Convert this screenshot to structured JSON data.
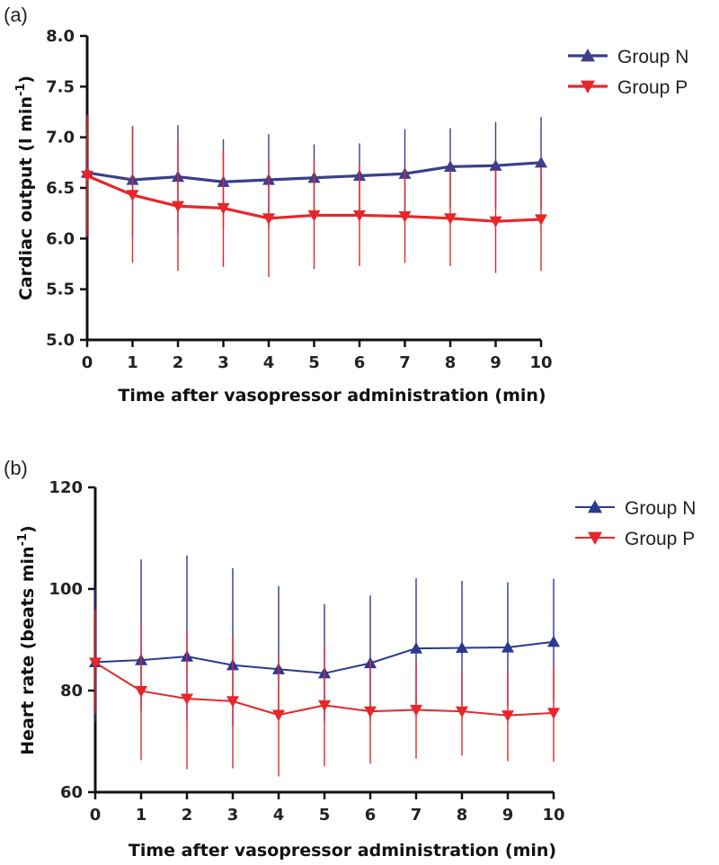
{
  "chart_data": [
    {
      "panel_label": "(a)",
      "type": "line",
      "ylabel_main": "Cardiac output (l min",
      "ylabel_sup": "-1",
      "ylabel_end": ")",
      "xlabel": "Time after vasopressor administration (min)",
      "ylim": [
        5.0,
        8.0
      ],
      "xlim": [
        0,
        10
      ],
      "yticks": [
        "5.0",
        "5.5",
        "6.0",
        "6.5",
        "7.0",
        "7.5",
        "8.0"
      ],
      "xticks": [
        "0",
        "1",
        "2",
        "3",
        "4",
        "5",
        "6",
        "7",
        "8",
        "9",
        "10"
      ],
      "grid": false,
      "legend_position": "top-right",
      "series": [
        {
          "name": "Group N",
          "color": "#3b3f8c",
          "marker": "triangle-up",
          "x": [
            0,
            1,
            2,
            3,
            4,
            5,
            6,
            7,
            8,
            9,
            10
          ],
          "values": [
            6.65,
            6.58,
            6.61,
            6.56,
            6.58,
            6.6,
            6.62,
            6.64,
            6.71,
            6.72,
            6.75
          ],
          "err_upper": [
            7.22,
            7.11,
            7.12,
            6.98,
            7.03,
            6.93,
            6.94,
            7.08,
            7.09,
            7.15,
            7.2
          ],
          "err_lower": [
            6.1,
            6.0,
            6.05,
            6.1,
            6.1,
            6.2,
            6.25,
            6.2,
            6.3,
            6.3,
            6.3
          ]
        },
        {
          "name": "Group P",
          "color": "#e8262a",
          "marker": "triangle-down",
          "x": [
            0,
            1,
            2,
            3,
            4,
            5,
            6,
            7,
            8,
            9,
            10
          ],
          "values": [
            6.62,
            6.43,
            6.32,
            6.3,
            6.2,
            6.23,
            6.23,
            6.22,
            6.2,
            6.17,
            6.19
          ],
          "err_upper": [
            7.22,
            7.11,
            6.96,
            6.88,
            6.78,
            6.77,
            6.73,
            6.68,
            6.67,
            6.68,
            6.7
          ],
          "err_lower": [
            6.02,
            5.76,
            5.68,
            5.72,
            5.62,
            5.7,
            5.73,
            5.76,
            5.73,
            5.66,
            5.68
          ]
        }
      ]
    },
    {
      "panel_label": "(b)",
      "type": "line",
      "ylabel_main": "Heart rate (beats min",
      "ylabel_sup": "-1",
      "ylabel_end": ")",
      "xlabel": "Time after vasopressor administration (min)",
      "ylim": [
        60,
        120
      ],
      "xlim": [
        0,
        10
      ],
      "yticks": [
        "60",
        "80",
        "100",
        "120"
      ],
      "xticks": [
        "0",
        "1",
        "2",
        "3",
        "4",
        "5",
        "6",
        "7",
        "8",
        "9",
        "10"
      ],
      "grid": false,
      "legend_position": "top-right",
      "series": [
        {
          "name": "Group N",
          "color": "#2b3990",
          "marker": "triangle-up",
          "x": [
            0,
            1,
            2,
            3,
            4,
            5,
            6,
            7,
            8,
            9,
            10
          ],
          "values": [
            85.6,
            86.0,
            86.7,
            85.0,
            84.2,
            83.4,
            85.4,
            88.3,
            88.4,
            88.5,
            89.6
          ],
          "err_upper": [
            100.0,
            105.8,
            106.6,
            104.1,
            100.6,
            97.0,
            98.7,
            102.1,
            101.6,
            101.3,
            102.0
          ],
          "err_lower": [
            74.0,
            76.0,
            74.0,
            73.0,
            75.0,
            74.0,
            74.0,
            77.0,
            77.0,
            77.0,
            78.0
          ]
        },
        {
          "name": "Group P",
          "color": "#e8262a",
          "marker": "triangle-down",
          "x": [
            0,
            1,
            2,
            3,
            4,
            5,
            6,
            7,
            8,
            9,
            10
          ],
          "values": [
            85.5,
            79.9,
            78.4,
            77.9,
            75.2,
            77.1,
            75.9,
            76.2,
            75.9,
            75.1,
            75.6
          ],
          "err_upper": [
            96.0,
            93.0,
            92.0,
            91.0,
            87.0,
            89.0,
            86.0,
            86.0,
            84.0,
            84.0,
            85.0
          ],
          "err_lower": [
            75.5,
            66.3,
            64.5,
            64.7,
            63.1,
            65.1,
            65.6,
            66.6,
            67.2,
            66.1,
            66.0
          ]
        }
      ]
    }
  ]
}
